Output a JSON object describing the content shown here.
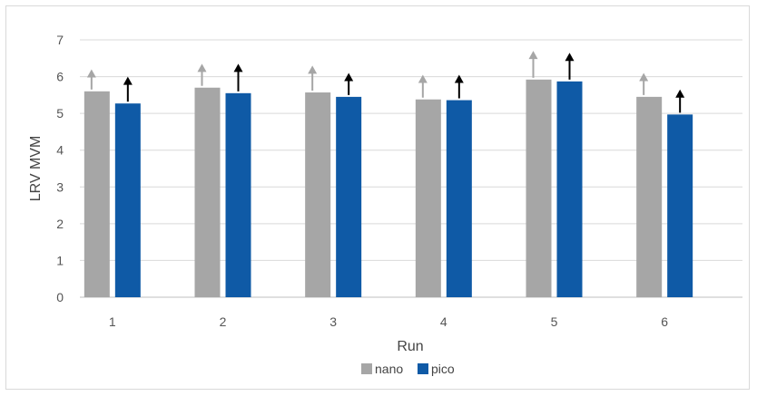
{
  "chart_data": {
    "type": "bar",
    "categories": [
      "1",
      "2",
      "3",
      "4",
      "5",
      "6"
    ],
    "series": [
      {
        "name": "nano",
        "color": "#a6a6a6",
        "values": [
          5.6,
          5.7,
          5.57,
          5.38,
          5.92,
          5.45
        ],
        "arrow_tip": [
          6.2,
          6.35,
          6.3,
          6.05,
          6.7,
          6.1
        ]
      },
      {
        "name": "pico",
        "color": "#0f5aa6",
        "values": [
          5.27,
          5.55,
          5.45,
          5.36,
          5.87,
          4.97
        ],
        "arrow_tip": [
          6.0,
          6.35,
          6.1,
          6.05,
          6.65,
          5.65
        ]
      }
    ],
    "xlabel": "Run",
    "ylabel": "LRV MVM",
    "ylim": [
      0,
      7
    ],
    "yticks": [
      0,
      1,
      2,
      3,
      4,
      5,
      6,
      7
    ],
    "grid": true,
    "legend_position": "bottom"
  }
}
